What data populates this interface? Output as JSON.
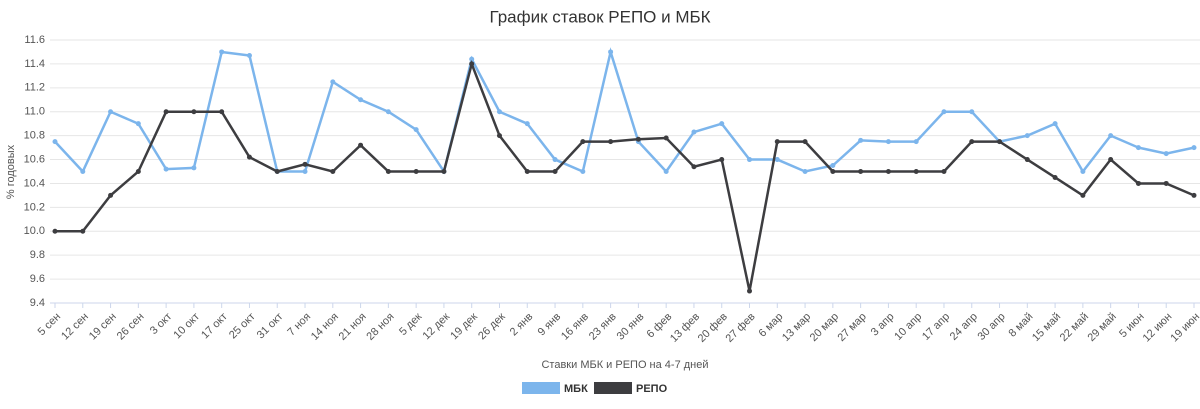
{
  "chart_data": {
    "type": "line",
    "title": "График ставок РЕПО и МБК",
    "x_label": "Ставки МБК и РЕПО на 4-7 дней",
    "y_label": "% годовых",
    "categories": [
      "5 сен",
      "12 сен",
      "19 сен",
      "26 сен",
      "3 окт",
      "10 окт",
      "17 окт",
      "25 окт",
      "31 окт",
      "7 ноя",
      "14 ноя",
      "21 ноя",
      "28 ноя",
      "5 дек",
      "12 дек",
      "19 дек",
      "26 дек",
      "2 янв",
      "9 янв",
      "16 янв",
      "23 янв",
      "30 янв",
      "6 фев",
      "13 фев",
      "20 фев",
      "27 фев",
      "6 мар",
      "13 мар",
      "20 мар",
      "27 мар",
      "3 апр",
      "10 апр",
      "17 апр",
      "24 апр",
      "30 апр",
      "8 май",
      "15 май",
      "22 май",
      "29 май",
      "5 июн",
      "12 июн",
      "19 июн"
    ],
    "series": [
      {
        "name": "МБК",
        "color": "#7cb5ec",
        "values": [
          10.75,
          10.5,
          11.0,
          10.9,
          10.52,
          10.53,
          11.5,
          11.47,
          10.5,
          10.5,
          11.25,
          11.1,
          11.0,
          10.85,
          10.5,
          11.44,
          11.0,
          10.9,
          10.6,
          10.5,
          11.5,
          10.75,
          10.5,
          10.83,
          10.9,
          10.6,
          10.6,
          10.5,
          10.55,
          10.76,
          10.75,
          10.75,
          11.0,
          11.0,
          10.75,
          10.8,
          10.9,
          10.5,
          10.8,
          10.7,
          10.65,
          10.7
        ]
      },
      {
        "name": "РЕПО",
        "color": "#3d3d40",
        "values": [
          10.0,
          10.0,
          10.3,
          10.5,
          11.0,
          11.0,
          11.0,
          10.62,
          10.5,
          10.56,
          10.5,
          10.72,
          10.5,
          10.5,
          10.5,
          11.4,
          10.8,
          10.5,
          10.5,
          10.75,
          10.75,
          10.77,
          10.78,
          10.54,
          10.6,
          9.5,
          10.75,
          10.75,
          10.5,
          10.5,
          10.5,
          10.5,
          10.5,
          10.75,
          10.75,
          10.6,
          10.45,
          10.3,
          10.6,
          10.4,
          10.4,
          10.3
        ]
      }
    ],
    "ylim": [
      9.4,
      11.6
    ],
    "yticks": [
      9.4,
      9.6,
      9.8,
      {
        "value": 10.0,
        "label": "10.0"
      },
      10.2,
      10.4,
      10.6,
      10.8,
      {
        "value": 11.0,
        "label": "11.0"
      },
      11.2,
      11.4,
      11.6
    ],
    "grid": true,
    "legend": "bottom"
  }
}
